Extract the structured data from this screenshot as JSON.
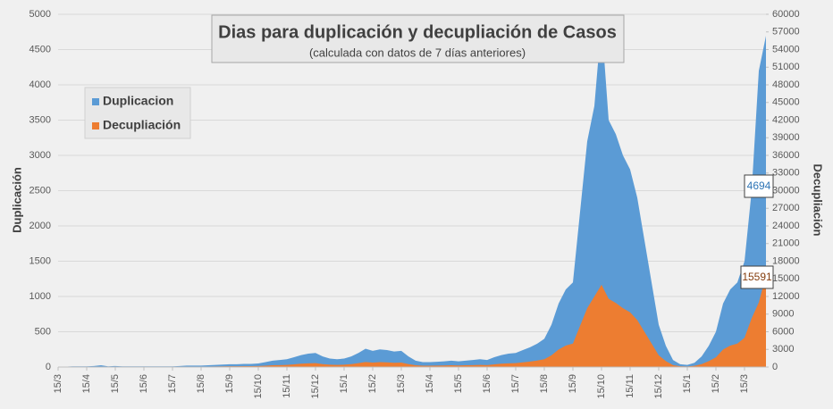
{
  "chart_data": {
    "type": "area",
    "title": "Dias para duplicación y decupliación de Casos",
    "subtitle": "(calculada con datos de 7 días anteriores)",
    "y_label": "Duplicación",
    "y2_label": "Decupliación",
    "categories": [
      "15/3",
      null,
      null,
      null,
      "15/4",
      null,
      null,
      null,
      "15/5",
      null,
      null,
      null,
      "15/6",
      null,
      null,
      null,
      "15/7",
      null,
      null,
      null,
      "15/8",
      null,
      null,
      null,
      "15/9",
      null,
      null,
      null,
      "15/10",
      null,
      null,
      null,
      "15/11",
      null,
      null,
      null,
      "15/12",
      null,
      null,
      null,
      "15/1",
      null,
      null,
      null,
      "15/2",
      null,
      null,
      null,
      "15/3",
      null,
      null,
      null,
      "15/4",
      null,
      null,
      null,
      "15/5",
      null,
      null,
      null,
      "15/6",
      null,
      null,
      null,
      "15/7",
      null,
      null,
      null,
      "15/8",
      null,
      null,
      null,
      "15/9",
      null,
      null,
      null,
      "15/10",
      null,
      null,
      null,
      "15/11",
      null,
      null,
      null,
      "15/12",
      null,
      null,
      null,
      "15/1",
      null,
      null,
      null,
      "15/2",
      null,
      null,
      null,
      "15/3",
      null,
      null,
      null
    ],
    "series": [
      {
        "name": "Duplicacion",
        "color": "#5b9bd5",
        "axis": "y",
        "values": [
          0,
          5,
          10,
          10,
          10,
          15,
          25,
          10,
          15,
          10,
          10,
          10,
          10,
          10,
          10,
          10,
          10,
          15,
          20,
          20,
          20,
          25,
          30,
          35,
          40,
          40,
          45,
          45,
          50,
          70,
          90,
          100,
          110,
          140,
          170,
          190,
          200,
          150,
          120,
          110,
          120,
          150,
          200,
          260,
          230,
          250,
          240,
          220,
          230,
          150,
          90,
          70,
          70,
          75,
          80,
          90,
          80,
          90,
          100,
          110,
          100,
          140,
          170,
          190,
          200,
          240,
          280,
          330,
          400,
          600,
          900,
          1100,
          1200,
          2200,
          3200,
          3700,
          4900,
          3500,
          3300,
          3000,
          2800,
          2400,
          1800,
          1200,
          600,
          300,
          100,
          40,
          30,
          60,
          150,
          300,
          500,
          900,
          1100,
          1200,
          1500,
          2500,
          4200,
          4694
        ]
      },
      {
        "name": "Decupliación",
        "color": "#ed7d31",
        "axis": "y2",
        "values": [
          0,
          17,
          33,
          33,
          33,
          50,
          83,
          33,
          50,
          33,
          33,
          33,
          33,
          33,
          33,
          33,
          33,
          50,
          66,
          66,
          66,
          83,
          100,
          116,
          133,
          133,
          149,
          149,
          166,
          232,
          299,
          332,
          365,
          465,
          564,
          631,
          664,
          498,
          398,
          365,
          398,
          498,
          664,
          863,
          764,
          830,
          797,
          730,
          764,
          498,
          299,
          232,
          232,
          249,
          266,
          299,
          266,
          299,
          332,
          365,
          332,
          465,
          564,
          631,
          664,
          797,
          930,
          1096,
          1328,
          1992,
          2988,
          3652,
          3984,
          7000,
          10000,
          12000,
          14000,
          11600,
          10900,
          10000,
          9300,
          8000,
          6000,
          4000,
          2000,
          1000,
          332,
          133,
          100,
          200,
          500,
          1000,
          1660,
          2990,
          3650,
          3980,
          4980,
          8300,
          11000,
          15591
        ]
      }
    ],
    "ylim": [
      0,
      5000
    ],
    "yticks": [
      0,
      500,
      1000,
      1500,
      2000,
      2500,
      3000,
      3500,
      4000,
      4500,
      5000
    ],
    "y2lim": [
      0,
      60000
    ],
    "y2ticks": [
      0,
      3000,
      6000,
      9000,
      12000,
      15000,
      18000,
      21000,
      24000,
      27000,
      30000,
      33000,
      36000,
      39000,
      42000,
      45000,
      48000,
      51000,
      54000,
      57000,
      60000
    ],
    "grid": true,
    "legend": "upper left"
  }
}
